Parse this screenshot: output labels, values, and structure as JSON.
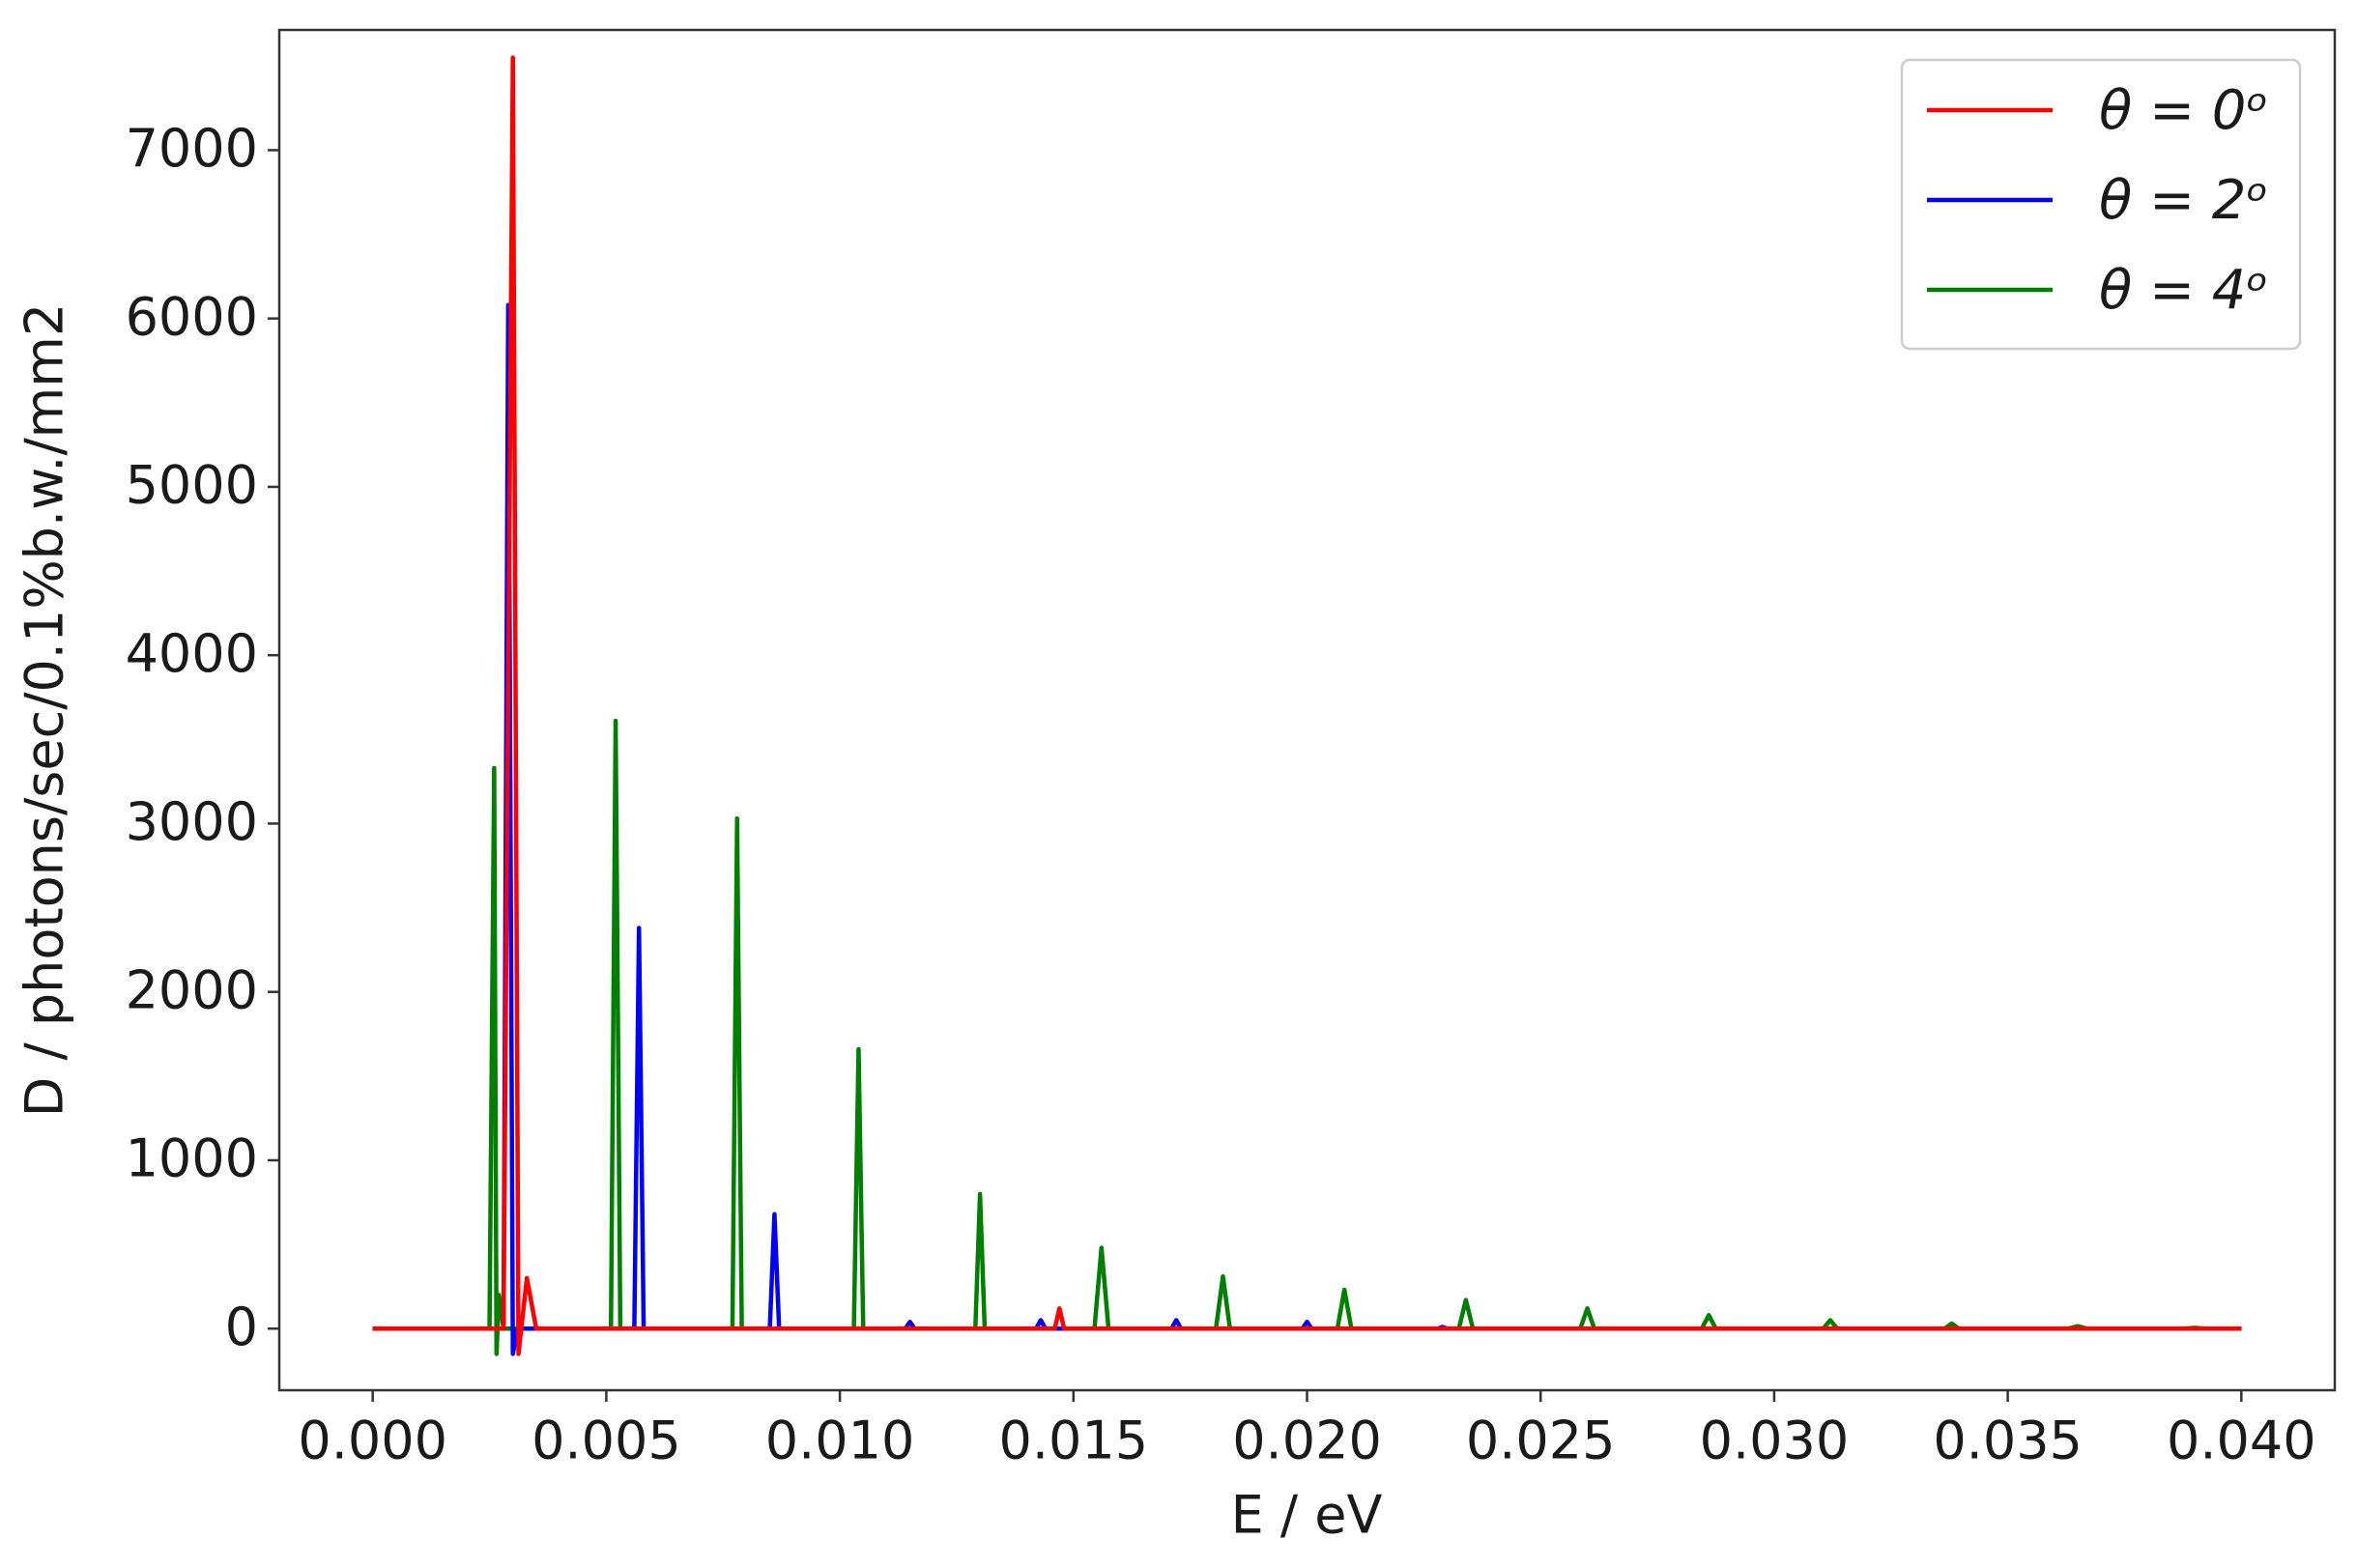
{
  "chart_data": {
    "type": "line",
    "xlabel": "E / eV",
    "ylabel": "D / photons/sec/0.1%b.w./mm2",
    "xlim": [
      -0.002,
      0.042
    ],
    "ylim": [
      -366,
      7714
    ],
    "xticks": [
      {
        "value": 0,
        "label": "0.000"
      },
      {
        "value": 0.005,
        "label": "0.005"
      },
      {
        "value": 0.01,
        "label": "0.010"
      },
      {
        "value": 0.015,
        "label": "0.015"
      },
      {
        "value": 0.02,
        "label": "0.020"
      },
      {
        "value": 0.025,
        "label": "0.025"
      },
      {
        "value": 0.03,
        "label": "0.030"
      },
      {
        "value": 0.035,
        "label": "0.035"
      },
      {
        "value": 0.04,
        "label": "0.040"
      }
    ],
    "yticks": [
      0,
      1000,
      2000,
      3000,
      4000,
      5000,
      6000,
      7000
    ],
    "grid": false,
    "legend": "upper right",
    "series": [
      {
        "name": "θ = 0ᵒ",
        "color": "#ff0000",
        "x": [
          0,
          0.0028,
          0.003,
          0.00312,
          0.0033,
          0.0035,
          0.0146,
          0.0147,
          0.0148,
          0.04
        ],
        "values": [
          0,
          0,
          7550,
          -150,
          300,
          0,
          0,
          120,
          0,
          0
        ]
      },
      {
        "name": "θ = 2ᵒ",
        "color": "#0000ff",
        "x": [
          0,
          0.0028,
          0.0029,
          0.003,
          0.0031,
          0.0056,
          0.0057,
          0.0058,
          0.0085,
          0.0086,
          0.0087,
          0.0114,
          0.0115,
          0.0116,
          0.0142,
          0.0143,
          0.0144,
          0.0171,
          0.0172,
          0.0173,
          0.0199,
          0.02,
          0.0201,
          0.0228,
          0.0229,
          0.023,
          0.04
        ],
        "values": [
          0,
          0,
          6080,
          -150,
          0,
          0,
          2380,
          0,
          0,
          680,
          0,
          0,
          40,
          0,
          0,
          50,
          0,
          0,
          50,
          0,
          0,
          40,
          0,
          0,
          10,
          0,
          0
        ]
      },
      {
        "name": "θ = 4ᵒ",
        "color": "#008000",
        "x": [
          0,
          0.0025,
          0.0026,
          0.00265,
          0.0027,
          0.0028,
          0.0051,
          0.0052,
          0.0053,
          0.0077,
          0.0078,
          0.0079,
          0.0103,
          0.0104,
          0.0105,
          0.0129,
          0.013,
          0.0131,
          0.01545,
          0.0156,
          0.01575,
          0.01805,
          0.0182,
          0.01835,
          0.02065,
          0.0208,
          0.02095,
          0.02325,
          0.0234,
          0.02355,
          0.02585,
          0.026,
          0.02615,
          0.02845,
          0.0286,
          0.02875,
          0.03105,
          0.0312,
          0.03135,
          0.03365,
          0.0338,
          0.03395,
          0.0363,
          0.0365,
          0.0367,
          0.0388,
          0.039,
          0.0392,
          0.04
        ],
        "values": [
          0,
          0,
          3330,
          -150,
          200,
          0,
          0,
          3610,
          0,
          0,
          3030,
          0,
          0,
          1660,
          0,
          0,
          800,
          0,
          0,
          480,
          0,
          0,
          310,
          0,
          0,
          230,
          0,
          0,
          170,
          0,
          0,
          120,
          0,
          0,
          80,
          0,
          0,
          50,
          0,
          0,
          30,
          0,
          0,
          15,
          0,
          0,
          5,
          0,
          0
        ]
      }
    ]
  }
}
